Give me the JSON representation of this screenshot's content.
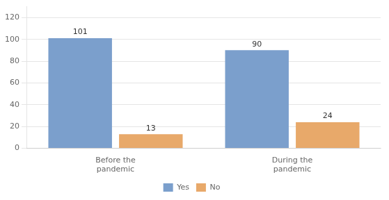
{
  "chart_data": {
    "type": "bar",
    "categories": [
      "Before the\npandemic",
      "During the\npandemic"
    ],
    "series": [
      {
        "name": "Yes",
        "color": "#7B9FCC",
        "values": [
          101,
          90
        ]
      },
      {
        "name": "No",
        "color": "#E8A96A",
        "values": [
          13,
          24
        ]
      }
    ],
    "ylim": [
      0,
      130
    ],
    "yticks": [
      0,
      20,
      40,
      60,
      80,
      100,
      120
    ],
    "grid": true,
    "legend": "bottom",
    "data_labels": true
  }
}
